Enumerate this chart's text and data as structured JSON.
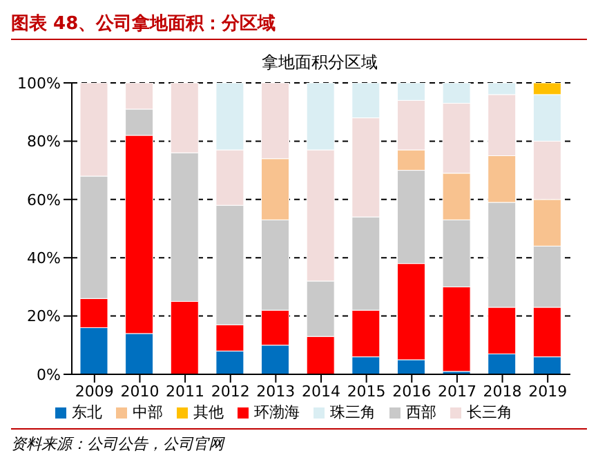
{
  "chart_data": {
    "type": "bar",
    "stacked": true,
    "title": "图表 48、公司拿地面积：分区域",
    "subtitle": "拿地面积分区域",
    "categories": [
      "2009",
      "2010",
      "2011",
      "2012",
      "2013",
      "2014",
      "2015",
      "2016",
      "2017",
      "2018",
      "2019"
    ],
    "series": [
      {
        "name": "东北",
        "color": "#0070c0",
        "values": [
          16,
          14,
          0,
          8,
          10,
          0,
          6,
          5,
          1,
          7,
          6
        ]
      },
      {
        "name": "环渤海",
        "color": "#ff0000",
        "values": [
          10,
          68,
          25,
          9,
          12,
          13,
          16,
          33,
          29,
          16,
          17
        ]
      },
      {
        "name": "西部",
        "color": "#c9c9c9",
        "values": [
          42,
          9,
          51,
          41,
          31,
          19,
          32,
          32,
          23,
          36,
          21
        ]
      },
      {
        "name": "中部",
        "color": "#f8c28f",
        "values": [
          0,
          0,
          0,
          0,
          21,
          0,
          0,
          7,
          16,
          16,
          16
        ]
      },
      {
        "name": "长三角",
        "color": "#f2dcdb",
        "values": [
          32,
          9,
          24,
          19,
          26,
          45,
          34,
          17,
          24,
          21,
          20
        ]
      },
      {
        "name": "珠三角",
        "color": "#daeef3",
        "values": [
          0,
          0,
          0,
          23,
          0,
          23,
          12,
          6,
          7,
          4,
          16
        ]
      },
      {
        "name": "其他",
        "color": "#ffc000",
        "values": [
          0,
          0,
          0,
          0,
          0,
          0,
          0,
          0,
          0,
          0,
          4
        ]
      }
    ],
    "ylim": [
      0,
      100
    ],
    "yticks": [
      {
        "value": 0,
        "label": "0%"
      },
      {
        "value": 20,
        "label": "20%"
      },
      {
        "value": 40,
        "label": "40%"
      },
      {
        "value": 60,
        "label": "60%"
      },
      {
        "value": 80,
        "label": "80%"
      },
      {
        "value": 100,
        "label": "100%"
      }
    ],
    "grid": "y",
    "legend": "bottom",
    "annotations": [
      "资料来源：公司公告，公司官网"
    ]
  }
}
